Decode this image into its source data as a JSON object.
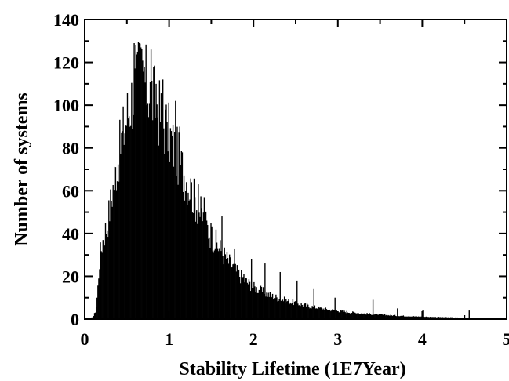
{
  "chart_data": {
    "type": "bar",
    "xlabel": "Stability Lifetime (1E7Year)",
    "ylabel": "Number of systems",
    "xlim": [
      0,
      5
    ],
    "ylim": [
      0,
      140
    ],
    "x_ticks": [
      "0",
      "1",
      "2",
      "3",
      "4",
      "5"
    ],
    "y_ticks": [
      "0",
      "20",
      "40",
      "60",
      "80",
      "100",
      "120",
      "140"
    ],
    "bin_width": 0.01,
    "envelope": [
      [
        0.0,
        0
      ],
      [
        0.05,
        0
      ],
      [
        0.1,
        1
      ],
      [
        0.13,
        4
      ],
      [
        0.15,
        12
      ],
      [
        0.18,
        30
      ],
      [
        0.22,
        38
      ],
      [
        0.27,
        45
      ],
      [
        0.32,
        58
      ],
      [
        0.38,
        72
      ],
      [
        0.44,
        84
      ],
      [
        0.5,
        95
      ],
      [
        0.56,
        104
      ],
      [
        0.62,
        112
      ],
      [
        0.67,
        114
      ],
      [
        0.72,
        110
      ],
      [
        0.8,
        104
      ],
      [
        0.9,
        95
      ],
      [
        1.0,
        86
      ],
      [
        1.1,
        76
      ],
      [
        1.2,
        66
      ],
      [
        1.3,
        56
      ],
      [
        1.4,
        47
      ],
      [
        1.5,
        39
      ],
      [
        1.6,
        33
      ],
      [
        1.7,
        27
      ],
      [
        1.8,
        22
      ],
      [
        1.9,
        18
      ],
      [
        2.0,
        15
      ],
      [
        2.2,
        11
      ],
      [
        2.4,
        8.5
      ],
      [
        2.6,
        6.5
      ],
      [
        2.8,
        5
      ],
      [
        3.0,
        3.8
      ],
      [
        3.3,
        2.6
      ],
      [
        3.6,
        1.8
      ],
      [
        4.0,
        1.1
      ],
      [
        4.5,
        0.6
      ],
      [
        5.0,
        0.3
      ]
    ],
    "spikes": [
      [
        0.58,
        129
      ],
      [
        0.6,
        128
      ],
      [
        0.62,
        125
      ],
      [
        0.64,
        129
      ],
      [
        0.66,
        127
      ],
      [
        0.7,
        118
      ],
      [
        0.78,
        126
      ],
      [
        0.84,
        110
      ],
      [
        0.92,
        112
      ],
      [
        0.97,
        92
      ],
      [
        1.07,
        102
      ],
      [
        1.12,
        90
      ],
      [
        1.26,
        64
      ],
      [
        1.34,
        63
      ],
      [
        1.41,
        57
      ],
      [
        1.49,
        45
      ],
      [
        1.62,
        48
      ],
      [
        1.77,
        33
      ],
      [
        1.88,
        21
      ],
      [
        1.97,
        28
      ],
      [
        2.13,
        26
      ],
      [
        2.31,
        22
      ],
      [
        2.51,
        18
      ],
      [
        2.71,
        14
      ],
      [
        2.96,
        10
      ],
      [
        3.41,
        9
      ],
      [
        3.7,
        5
      ],
      [
        4.0,
        4
      ],
      [
        4.55,
        4
      ]
    ],
    "grid": false,
    "legend": "none"
  }
}
